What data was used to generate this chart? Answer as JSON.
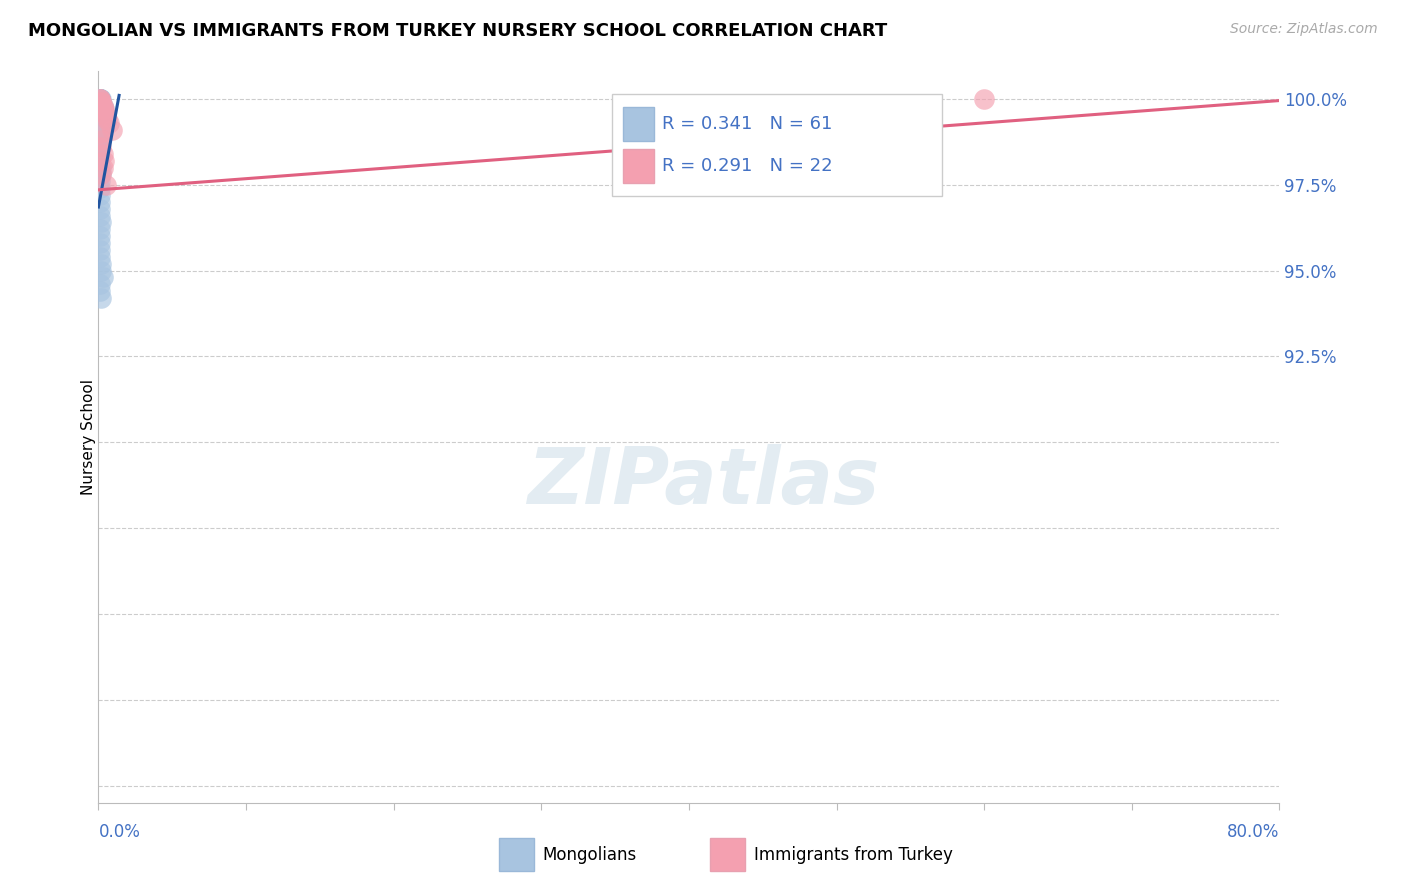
{
  "title": "MONGOLIAN VS IMMIGRANTS FROM TURKEY NURSERY SCHOOL CORRELATION CHART",
  "source": "Source: ZipAtlas.com",
  "ylabel": "Nursery School",
  "legend_label1": "Mongolians",
  "legend_label2": "Immigrants from Turkey",
  "R1": 0.341,
  "N1": 61,
  "R2": 0.291,
  "N2": 22,
  "blue_color": "#a8c4e0",
  "pink_color": "#f4a0b0",
  "blue_line_color": "#2255a0",
  "pink_line_color": "#e06080",
  "xlim": [
    0.0,
    0.8
  ],
  "ylim": [
    0.795,
    1.008
  ],
  "ytick_vals": [
    0.8,
    0.825,
    0.85,
    0.875,
    0.9,
    0.925,
    0.95,
    0.975,
    1.0
  ],
  "ytick_labels_right": [
    "",
    "",
    "",
    "",
    "",
    "92.5%",
    "95.0%",
    "97.5%",
    "100.0%"
  ],
  "xtick_vals": [
    0.0,
    0.1,
    0.2,
    0.3,
    0.4,
    0.5,
    0.6,
    0.7,
    0.8
  ],
  "blue_scatter_x": [
    0.0008,
    0.0009,
    0.001,
    0.001,
    0.001,
    0.0012,
    0.0013,
    0.0014,
    0.0015,
    0.001,
    0.001,
    0.001,
    0.001,
    0.001,
    0.0008,
    0.0008,
    0.0009,
    0.001,
    0.001,
    0.0015,
    0.002,
    0.002,
    0.002,
    0.0025,
    0.003,
    0.003,
    0.003,
    0.004,
    0.001,
    0.001,
    0.001,
    0.0012,
    0.0015,
    0.002,
    0.0025,
    0.003,
    0.001,
    0.0008,
    0.0009,
    0.001,
    0.0012,
    0.002,
    0.0015,
    0.001,
    0.001,
    0.0008,
    0.0009,
    0.001,
    0.0011,
    0.002,
    0.0008,
    0.001,
    0.001,
    0.001,
    0.001,
    0.0015,
    0.002,
    0.003,
    0.001,
    0.001,
    0.002
  ],
  "blue_scatter_y": [
    1.0,
    1.0,
    1.0,
    1.0,
    1.0,
    1.0,
    1.0,
    1.0,
    1.0,
    0.999,
    0.999,
    0.999,
    0.999,
    0.998,
    0.999,
    0.999,
    0.999,
    0.999,
    0.999,
    0.999,
    0.999,
    0.998,
    0.998,
    0.998,
    0.998,
    0.997,
    0.997,
    0.997,
    0.997,
    0.996,
    0.996,
    0.996,
    0.995,
    0.994,
    0.993,
    0.992,
    0.99,
    0.988,
    0.987,
    0.985,
    0.983,
    0.98,
    0.978,
    0.976,
    0.974,
    0.972,
    0.97,
    0.968,
    0.966,
    0.964,
    0.962,
    0.96,
    0.958,
    0.956,
    0.954,
    0.952,
    0.95,
    0.948,
    0.946,
    0.944,
    0.942
  ],
  "pink_scatter_x": [
    0.001,
    0.0012,
    0.0015,
    0.002,
    0.002,
    0.003,
    0.003,
    0.004,
    0.004,
    0.005,
    0.006,
    0.007,
    0.009,
    0.001,
    0.0015,
    0.002,
    0.003,
    0.004,
    0.003,
    0.002,
    0.005,
    0.6
  ],
  "pink_scatter_y": [
    1.0,
    1.0,
    0.999,
    0.999,
    0.998,
    0.998,
    0.997,
    0.997,
    0.996,
    0.995,
    0.994,
    0.993,
    0.991,
    0.99,
    0.988,
    0.986,
    0.984,
    0.982,
    0.98,
    0.978,
    0.975,
    1.0
  ],
  "blue_line_x": [
    0.0,
    0.014
  ],
  "blue_line_y": [
    0.9685,
    1.001
  ],
  "pink_line_x": [
    0.0,
    0.8
  ],
  "pink_line_y": [
    0.9735,
    0.9995
  ]
}
